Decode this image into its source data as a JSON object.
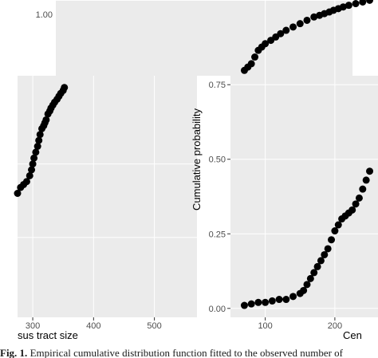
{
  "figure": {
    "caption_lead": "Fig. 1.",
    "caption_text": "Empirical cumulative distribution function fitted to the observed number of"
  },
  "colors": {
    "panel_bg": "#ebebeb",
    "grid": "#ffffff",
    "points": "#000000"
  },
  "chart_data": [
    {
      "type": "scatter",
      "name_visible": "top-back-panel",
      "ytick_labels": [
        "1.00"
      ],
      "y": [
        0.79,
        0.8,
        0.81,
        0.83,
        0.85,
        0.86,
        0.87,
        0.88,
        0.89,
        0.9,
        0.91,
        0.92,
        0.93,
        0.94,
        0.95,
        0.955,
        0.96,
        0.965,
        0.97,
        0.975,
        0.98,
        0.985,
        0.99,
        0.995,
        1.0
      ],
      "x": [
        70,
        75,
        80,
        85,
        90,
        95,
        100,
        108,
        115,
        122,
        130,
        140,
        150,
        160,
        170,
        178,
        185,
        192,
        198,
        205,
        212,
        220,
        230,
        240,
        250
      ],
      "ylim": [
        0.75,
        1.02
      ],
      "grid": true
    },
    {
      "type": "scatter",
      "xlabel": "sus tract size",
      "xtick_labels": [
        "300",
        "400",
        "500"
      ],
      "x_ticks": [
        300,
        400,
        500
      ],
      "xlim": [
        275,
        570
      ],
      "ylim": [
        0.0,
        0.8
      ],
      "x": [
        275,
        280,
        285,
        290,
        295,
        298,
        300,
        302,
        305,
        308,
        310,
        312,
        315,
        318,
        320,
        322,
        325,
        328,
        330,
        333,
        336,
        340,
        343,
        346,
        350,
        352
      ],
      "y": [
        0.4,
        0.42,
        0.43,
        0.44,
        0.46,
        0.48,
        0.5,
        0.52,
        0.54,
        0.56,
        0.58,
        0.6,
        0.62,
        0.63,
        0.64,
        0.65,
        0.67,
        0.68,
        0.69,
        0.7,
        0.71,
        0.72,
        0.73,
        0.74,
        0.75,
        0.76
      ],
      "grid": true
    },
    {
      "type": "scatter",
      "xlabel": "Cen",
      "ylabel": "Cumulative probability",
      "xtick_labels": [
        "100",
        "200"
      ],
      "x_ticks": [
        100,
        200
      ],
      "ytick_labels": [
        "0.00",
        "0.25",
        "0.50",
        "0.75"
      ],
      "y_ticks": [
        0.0,
        0.25,
        0.5,
        0.75
      ],
      "xlim": [
        50,
        262
      ],
      "ylim": [
        -0.03,
        0.78
      ],
      "x": [
        70,
        80,
        90,
        100,
        110,
        120,
        130,
        140,
        150,
        155,
        160,
        165,
        170,
        175,
        180,
        185,
        190,
        195,
        200,
        205,
        210,
        215,
        220,
        225,
        230,
        235,
        240,
        245,
        250
      ],
      "y": [
        0.01,
        0.015,
        0.02,
        0.02,
        0.025,
        0.03,
        0.03,
        0.04,
        0.05,
        0.06,
        0.08,
        0.1,
        0.12,
        0.14,
        0.16,
        0.18,
        0.2,
        0.23,
        0.26,
        0.28,
        0.3,
        0.31,
        0.32,
        0.33,
        0.35,
        0.37,
        0.4,
        0.43,
        0.46
      ],
      "grid": true
    }
  ]
}
